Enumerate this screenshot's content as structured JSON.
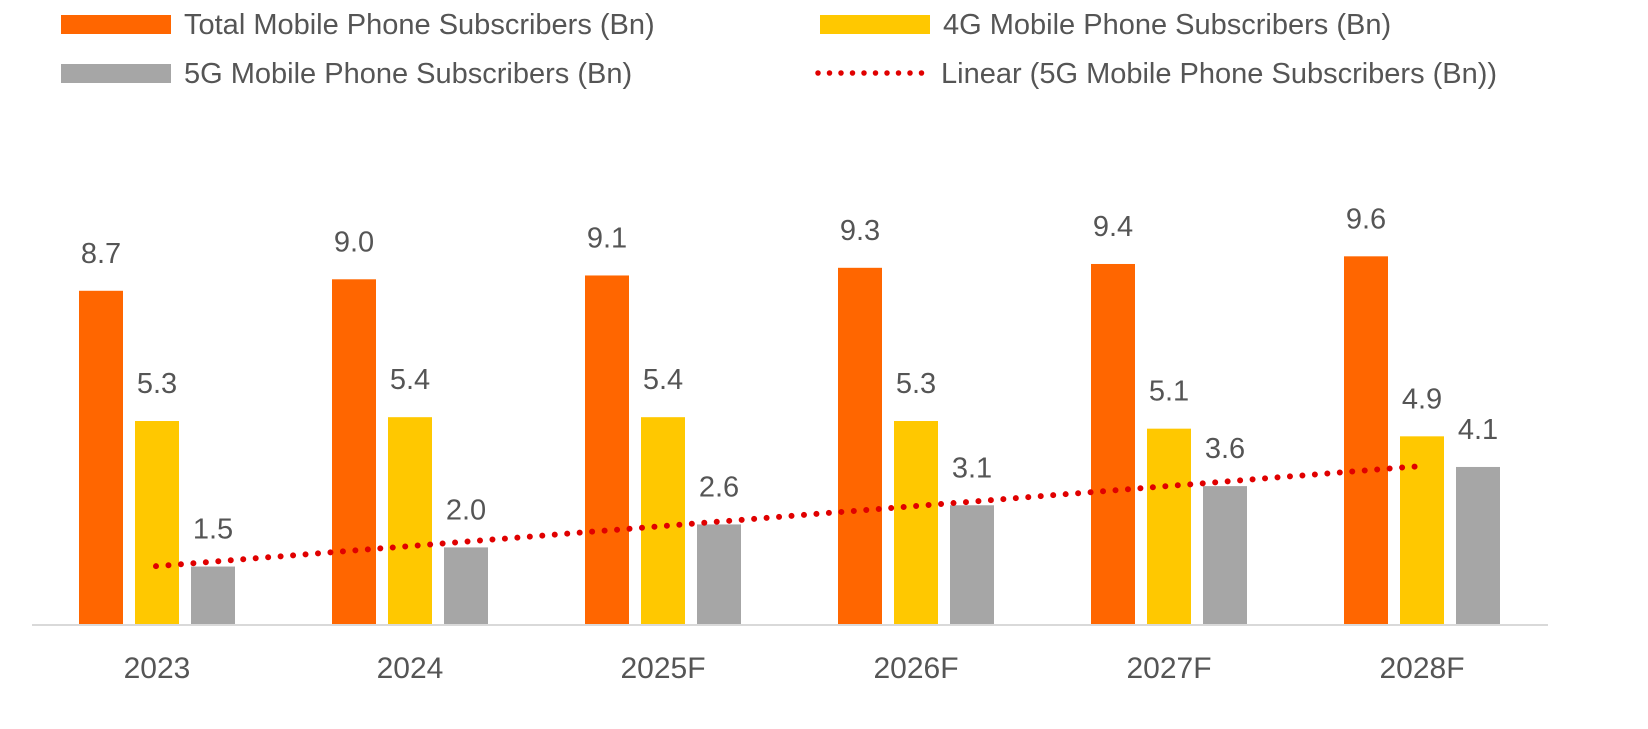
{
  "chart_data": {
    "type": "bar",
    "title": "",
    "xlabel": "",
    "ylabel": "",
    "ylim": [
      0,
      11.5
    ],
    "grid": false,
    "legend_position": "top",
    "categories": [
      "2023",
      "2024",
      "2025F",
      "2026F",
      "2027F",
      "2028F"
    ],
    "series": [
      {
        "name": "Total Mobile Phone Subscribers (Bn)",
        "color": "#FF6600",
        "values": [
          8.7,
          9.0,
          9.1,
          9.3,
          9.4,
          9.6
        ],
        "labels": [
          "8.7",
          "9.0",
          "9.1",
          "9.3",
          "9.4",
          "9.6"
        ]
      },
      {
        "name": "4G Mobile Phone Subscribers (Bn)",
        "color": "#FFC800",
        "values": [
          5.3,
          5.4,
          5.4,
          5.3,
          5.1,
          4.9
        ],
        "labels": [
          "5.3",
          "5.4",
          "5.4",
          "5.3",
          "5.1",
          "4.9"
        ]
      },
      {
        "name": "5G Mobile Phone Subscribers (Bn)",
        "color": "#A6A6A6",
        "values": [
          1.5,
          2.0,
          2.6,
          3.1,
          3.6,
          4.1
        ],
        "labels": [
          "1.5",
          "2.0",
          "2.6",
          "3.1",
          "3.6",
          "4.1"
        ]
      }
    ],
    "trendline": {
      "name": "Linear (5G Mobile Phone Subscribers (Bn))",
      "type": "linear",
      "of_series": "5G Mobile Phone Subscribers (Bn)",
      "color": "#E00000",
      "style": "dotted"
    },
    "axis_color": "#D9D9D9",
    "text_color": "#555555"
  }
}
